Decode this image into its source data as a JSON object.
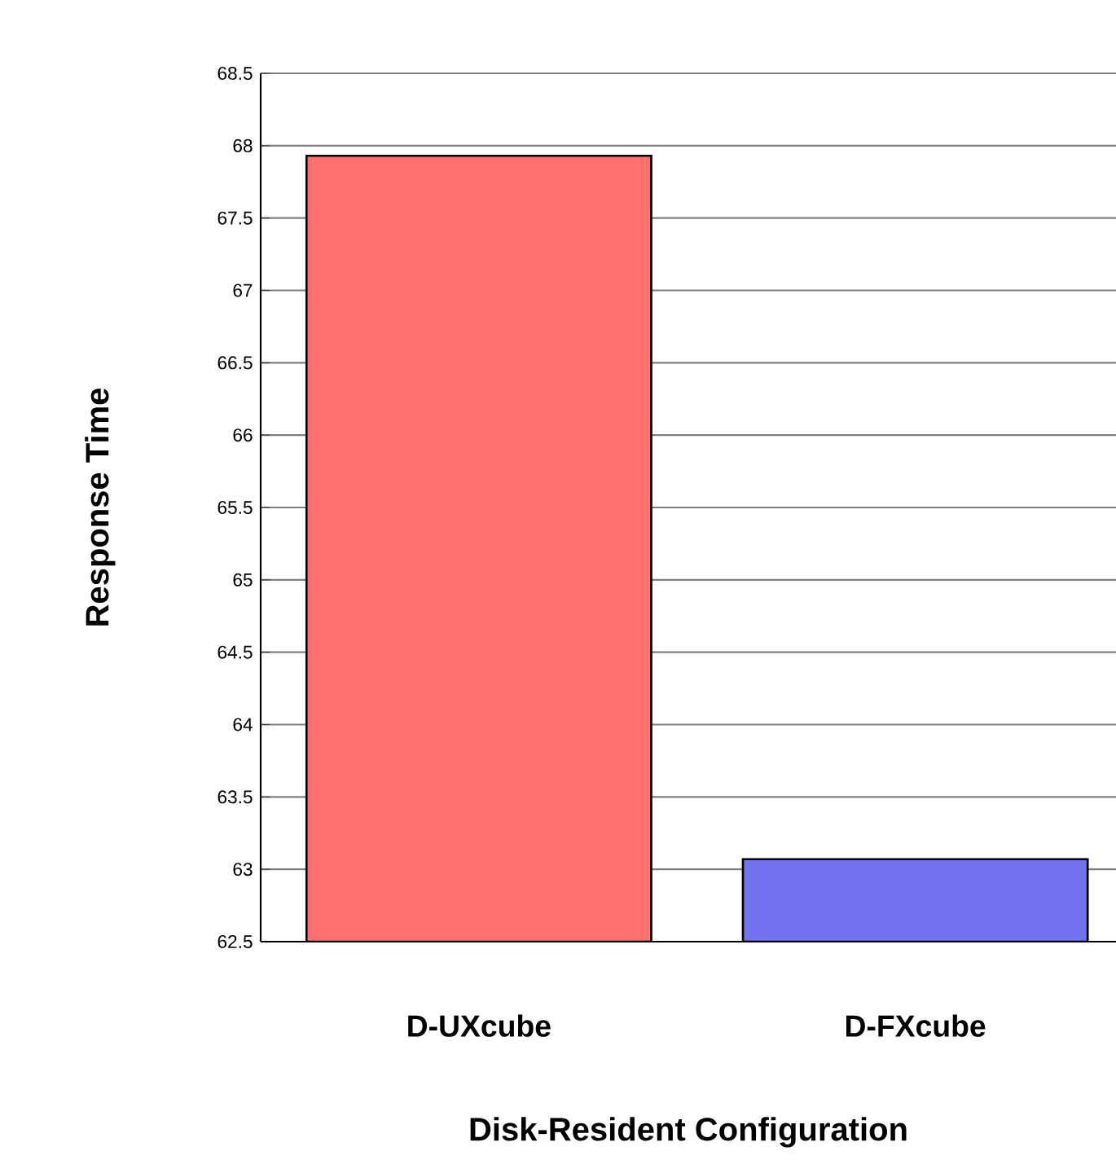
{
  "chart_data": {
    "type": "bar",
    "xlabel": "Disk-Resident Configuration",
    "ylabel": "Response Time",
    "categories": [
      "D-UXcube",
      "D-FXcube"
    ],
    "values": [
      67.93,
      63.07
    ],
    "colors": [
      "#ff7070",
      "#7373f0"
    ],
    "ylim": [
      62.5,
      68.5
    ],
    "yticks": [
      62.5,
      63,
      63.5,
      64,
      64.5,
      65,
      65.5,
      66,
      66.5,
      67,
      67.5,
      68,
      68.5
    ],
    "grid": "y"
  }
}
